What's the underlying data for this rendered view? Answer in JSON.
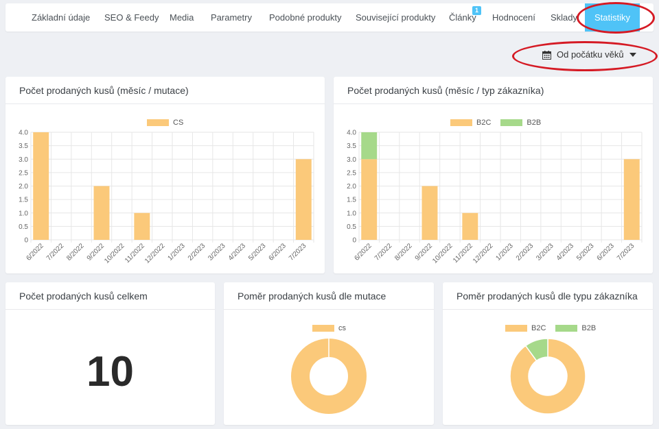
{
  "tabs": [
    {
      "label": "Základní údaje"
    },
    {
      "label": "SEO & Feedy"
    },
    {
      "label": "Media"
    },
    {
      "label": "Parametry"
    },
    {
      "label": "Podobné produkty"
    },
    {
      "label": "Související produkty"
    },
    {
      "label": "Články",
      "badge": "1"
    },
    {
      "label": "Hodnocení"
    },
    {
      "label": "Sklady"
    },
    {
      "label": "Statistiky",
      "active": true
    }
  ],
  "filter": {
    "label": "Od počátku věků",
    "icon": "calendar-icon"
  },
  "colors": {
    "b2c": "#fbc97a",
    "b2b": "#a6d98a",
    "active_tab": "#4fc3f7",
    "annotation": "#d51a24"
  },
  "cards": {
    "monthly_mutation": {
      "title": "Počet prodaných kusů (měsíc / mutace)"
    },
    "monthly_customer": {
      "title": "Počet prodaných kusů (měsíc / typ zákazníka)"
    },
    "total": {
      "title": "Počet prodaných kusů celkem",
      "value": "10"
    },
    "ratio_mutation": {
      "title": "Poměr prodaných kusů dle mutace"
    },
    "ratio_customer": {
      "title": "Poměr prodaných kusů dle typu zákazníka"
    }
  },
  "chart_data": [
    {
      "type": "bar",
      "categories": [
        "6/2022",
        "7/2022",
        "8/2022",
        "9/2022",
        "10/2022",
        "11/2022",
        "12/2022",
        "1/2023",
        "2/2023",
        "3/2023",
        "4/2023",
        "5/2023",
        "6/2023",
        "7/2023"
      ],
      "series": [
        {
          "name": "CS",
          "values": [
            4,
            0,
            0,
            2,
            0,
            1,
            0,
            0,
            0,
            0,
            0,
            0,
            0,
            3
          ]
        }
      ],
      "yticks": [
        "0",
        "0.5",
        "1.0",
        "1.5",
        "2.0",
        "2.5",
        "3.0",
        "3.5",
        "4.0"
      ],
      "ylim": [
        0,
        4
      ],
      "legend": "top"
    },
    {
      "type": "bar",
      "stacked": true,
      "categories": [
        "6/2022",
        "7/2022",
        "8/2022",
        "9/2022",
        "10/2022",
        "11/2022",
        "12/2022",
        "1/2023",
        "2/2023",
        "3/2023",
        "4/2023",
        "5/2023",
        "6/2023",
        "7/2023"
      ],
      "series": [
        {
          "name": "B2C",
          "values": [
            3,
            0,
            0,
            2,
            0,
            1,
            0,
            0,
            0,
            0,
            0,
            0,
            0,
            3
          ]
        },
        {
          "name": "B2B",
          "values": [
            1,
            0,
            0,
            0,
            0,
            0,
            0,
            0,
            0,
            0,
            0,
            0,
            0,
            0
          ]
        }
      ],
      "yticks": [
        "0",
        "0.5",
        "1.0",
        "1.5",
        "2.0",
        "2.5",
        "3.0",
        "3.5",
        "4.0"
      ],
      "ylim": [
        0,
        4
      ],
      "legend": "top"
    },
    {
      "type": "pie",
      "donut": true,
      "labels": [
        "cs"
      ],
      "values": [
        10
      ],
      "legend": "top"
    },
    {
      "type": "pie",
      "donut": true,
      "labels": [
        "B2C",
        "B2B"
      ],
      "values": [
        9,
        1
      ],
      "legend": "top"
    }
  ]
}
